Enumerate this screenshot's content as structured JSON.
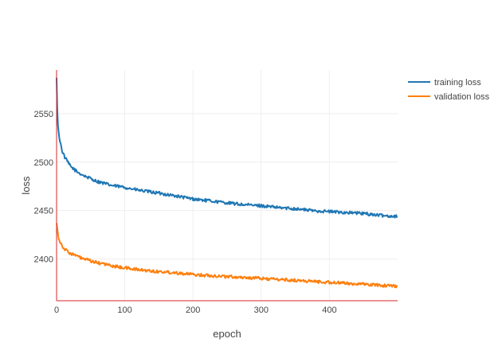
{
  "chart_data": {
    "type": "line",
    "title": "",
    "xlabel": "epoch",
    "ylabel": "loss",
    "xlim": [
      0,
      500
    ],
    "ylim": [
      2357,
      2595
    ],
    "x_ticks": [
      0,
      100,
      200,
      300,
      400
    ],
    "y_ticks": [
      2400,
      2450,
      2500,
      2550
    ],
    "grid": true,
    "legend_position": "top-right",
    "x": [
      0,
      1,
      2,
      3,
      5,
      8,
      12,
      20,
      30,
      40,
      50,
      60,
      70,
      80,
      100,
      120,
      150,
      175,
      200,
      225,
      250,
      275,
      300,
      325,
      350,
      375,
      400,
      425,
      450,
      475,
      499
    ],
    "series": [
      {
        "name": "training loss",
        "color": "#1f77b4",
        "values": [
          2587,
          2555,
          2538,
          2530,
          2522,
          2512,
          2505,
          2496,
          2490,
          2486,
          2483,
          2480,
          2478,
          2476,
          2474,
          2471,
          2468,
          2465,
          2462,
          2460,
          2458,
          2456,
          2455,
          2453,
          2452,
          2450,
          2449,
          2448,
          2447,
          2445,
          2444
        ]
      },
      {
        "name": "validation loss",
        "color": "#ff7f0e",
        "values": [
          2437,
          2432,
          2426,
          2422,
          2418,
          2414,
          2410,
          2406,
          2403,
          2400,
          2398,
          2396,
          2395,
          2393,
          2391,
          2389,
          2387,
          2386,
          2384,
          2383,
          2382,
          2381,
          2380,
          2379,
          2378,
          2377,
          2376,
          2375,
          2374,
          2373,
          2372
        ]
      }
    ]
  }
}
